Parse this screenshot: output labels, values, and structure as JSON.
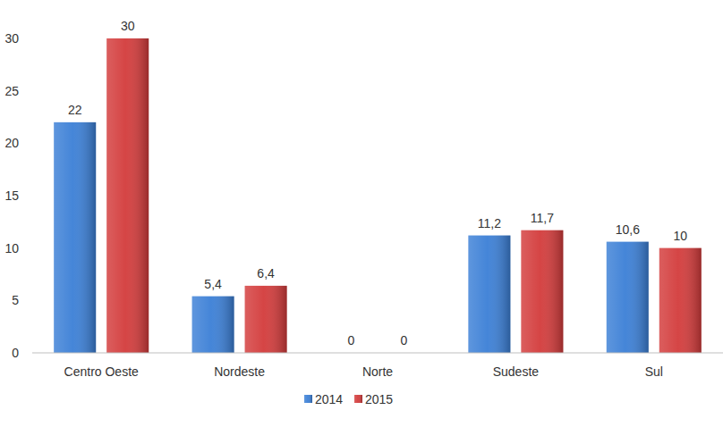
{
  "chart_data": {
    "type": "bar",
    "categories": [
      "Centro Oeste",
      "Nordeste",
      "Norte",
      "Sudeste",
      "Sul"
    ],
    "series": [
      {
        "name": "2014",
        "color": "#3b7fd6",
        "values": [
          22,
          5.4,
          0,
          11.2,
          10.6
        ],
        "value_labels": [
          "22",
          "5,4",
          "0",
          "11,2",
          "10,6"
        ]
      },
      {
        "name": "2015",
        "color": "#d33b3b",
        "values": [
          30,
          6.4,
          0,
          11.7,
          10
        ],
        "value_labels": [
          "30",
          "6,4",
          "0",
          "11,7",
          "10"
        ]
      }
    ],
    "ylim": [
      0,
      30
    ],
    "yticks": [
      0,
      5,
      10,
      15,
      20,
      25,
      30
    ],
    "grid": false,
    "legend": "bottom",
    "data_labels": true
  }
}
